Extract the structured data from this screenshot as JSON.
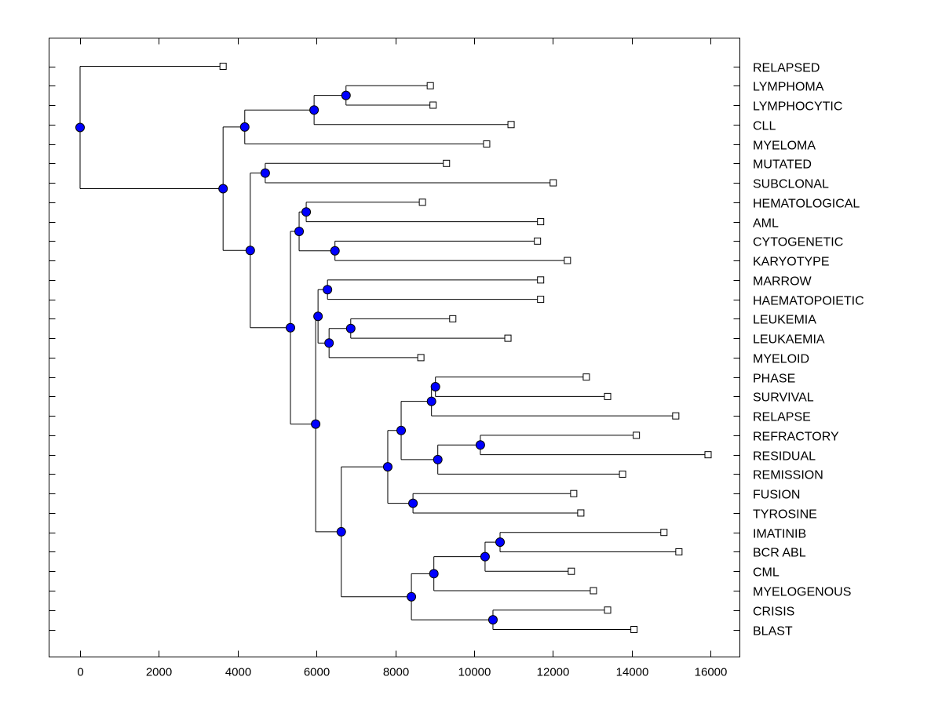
{
  "chart_data": {
    "type": "dendrogram",
    "orientation": "horizontal",
    "xlim": [
      -800,
      16800
    ],
    "x_ticks": [
      0,
      2000,
      4000,
      6000,
      8000,
      10000,
      12000,
      14000,
      16000
    ],
    "x_tick_labels": [
      "0",
      "2000",
      "4000",
      "6000",
      "8000",
      "10000",
      "12000",
      "14000",
      "16000"
    ],
    "leaf_order": [
      "RELAPSED",
      "LYMPHOMA",
      "LYMPHOCYTIC",
      "CLL",
      "MYELOMA",
      "MUTATED",
      "SUBCLONAL",
      "HEMATOLOGICAL",
      "AML",
      "CYTOGENETIC",
      "KARYOTYPE",
      "MARROW",
      "HAEMATOPOIETIC",
      "LEUKEMIA",
      "LEUKAEMIA",
      "MYELOID",
      "PHASE",
      "SURVIVAL",
      "RELAPSE",
      "REFRACTORY",
      "RESIDUAL",
      "REMISSION",
      "FUSION",
      "TYROSINE",
      "IMATINIB",
      "BCR ABL",
      "CML",
      "MYELOGENOUS",
      "CRISIS",
      "BLAST"
    ],
    "leaf_values": {
      "RELAPSED": 3630,
      "LYMPHOMA": 8890,
      "LYMPHOCYTIC": 8960,
      "CLL": 10940,
      "MYELOMA": 10320,
      "MUTATED": 9300,
      "SUBCLONAL": 12010,
      "HEMATOLOGICAL": 8690,
      "AML": 11690,
      "CYTOGENETIC": 11610,
      "KARYOTYPE": 12370,
      "MARROW": 11690,
      "HAEMATOPOIETIC": 11690,
      "LEUKEMIA": 9460,
      "LEUKAEMIA": 10860,
      "MYELOID": 8650,
      "PHASE": 12850,
      "SURVIVAL": 13390,
      "RELAPSE": 15120,
      "REFRACTORY": 14120,
      "RESIDUAL": 15940,
      "REMISSION": 13770,
      "FUSION": 12530,
      "TYROSINE": 12710,
      "IMATINIB": 14820,
      "BCR ABL": 15200,
      "CML": 12470,
      "MYELOGENOUS": 13030,
      "CRISIS": 13390,
      "BLAST": 14060
    },
    "tree": {
      "h": 0,
      "c": [
        "RELAPSED",
        {
          "h": 3630,
          "c": [
            {
              "h": 4180,
              "c": [
                {
                  "h": 5940,
                  "c": [
                    {
                      "h": 6750,
                      "c": [
                        "LYMPHOMA",
                        "LYMPHOCYTIC"
                      ]
                    },
                    "CLL"
                  ]
                },
                "MYELOMA"
              ]
            },
            {
              "h": 4320,
              "c": [
                {
                  "h": 4700,
                  "c": [
                    "MUTATED",
                    "SUBCLONAL"
                  ]
                },
                {
                  "h": 5340,
                  "c": [
                    {
                      "h": 5560,
                      "c": [
                        {
                          "h": 5740,
                          "c": [
                            "HEMATOLOGICAL",
                            "AML"
                          ]
                        },
                        {
                          "h": 6470,
                          "c": [
                            "CYTOGENETIC",
                            "KARYOTYPE"
                          ]
                        }
                      ]
                    },
                    {
                      "h": 5980,
                      "c": [
                        {
                          "h": 6040,
                          "c": [
                            {
                              "h": 6280,
                              "c": [
                                "MARROW",
                                "HAEMATOPOIETIC"
                              ]
                            },
                            {
                              "h": 6320,
                              "c": [
                                {
                                  "h": 6870,
                                  "c": [
                                    "LEUKEMIA",
                                    "LEUKAEMIA"
                                  ]
                                },
                                "MYELOID"
                              ]
                            }
                          ]
                        },
                        {
                          "h": 6630,
                          "c": [
                            {
                              "h": 7810,
                              "c": [
                                {
                                  "h": 8150,
                                  "c": [
                                    {
                                      "h": 8920,
                                      "c": [
                                        {
                                          "h": 9020,
                                          "c": [
                                            "PHASE",
                                            "SURVIVAL"
                                          ]
                                        },
                                        "RELAPSE"
                                      ]
                                    },
                                    {
                                      "h": 9080,
                                      "c": [
                                        {
                                          "h": 10160,
                                          "c": [
                                            "REFRACTORY",
                                            "RESIDUAL"
                                          ]
                                        },
                                        "REMISSION"
                                      ]
                                    }
                                  ]
                                },
                                {
                                  "h": 8450,
                                  "c": [
                                    "FUSION",
                                    "TYROSINE"
                                  ]
                                }
                              ]
                            },
                            {
                              "h": 8410,
                              "c": [
                                {
                                  "h": 8980,
                                  "c": [
                                    {
                                      "h": 10280,
                                      "c": [
                                        {
                                          "h": 10660,
                                          "c": [
                                            "IMATINIB",
                                            "BCR ABL"
                                          ]
                                        },
                                        "CML"
                                      ]
                                    },
                                    "MYELOGENOUS"
                                  ]
                                },
                                {
                                  "h": 10480,
                                  "c": [
                                    "CRISIS",
                                    "BLAST"
                                  ]
                                }
                              ]
                            }
                          ]
                        }
                      ]
                    }
                  ]
                }
              ]
            }
          ]
        }
      ]
    },
    "colors": {
      "node": "#0000ff",
      "leaf": "#ffffff",
      "line": "#000000"
    },
    "grid": false
  }
}
